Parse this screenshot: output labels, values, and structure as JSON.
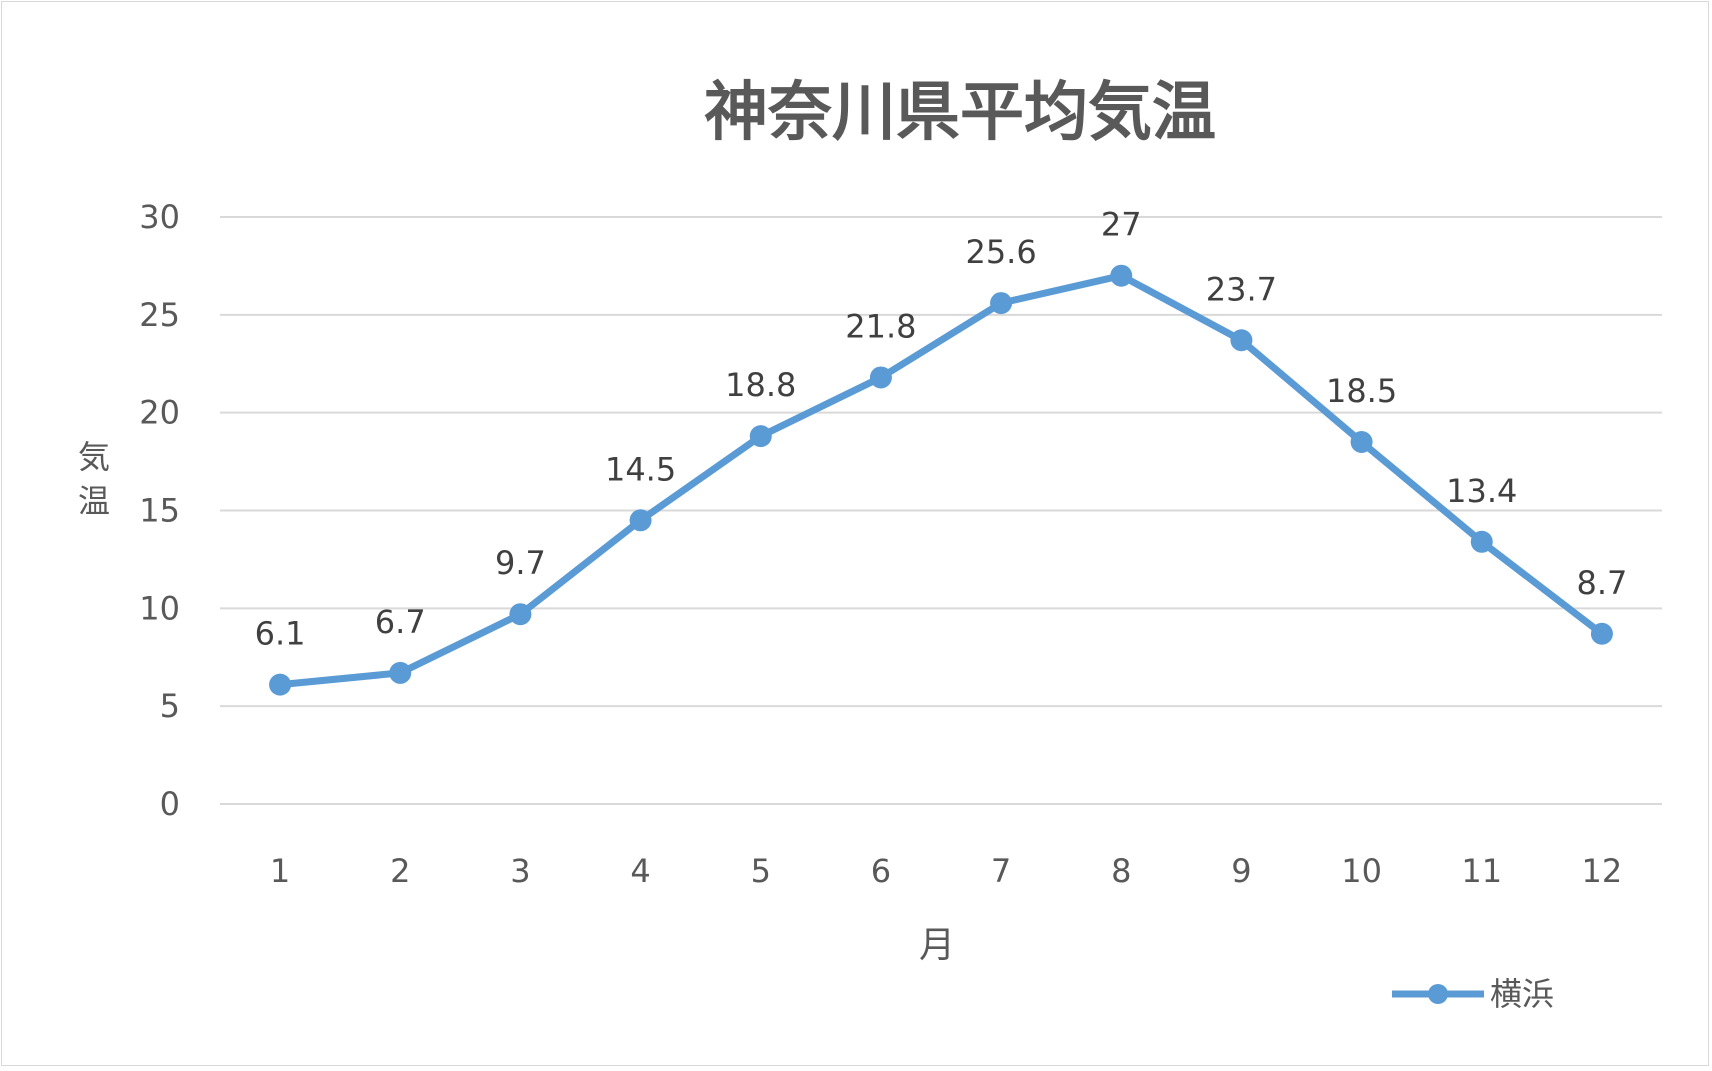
{
  "chart_data": {
    "type": "line",
    "title": "神奈川県平均気温",
    "xlabel": "月",
    "ylabel": "気温",
    "categories": [
      "1",
      "2",
      "3",
      "4",
      "5",
      "6",
      "7",
      "8",
      "9",
      "10",
      "11",
      "12"
    ],
    "series": [
      {
        "name": "横浜",
        "values": [
          6.1,
          6.7,
          9.7,
          14.5,
          18.8,
          21.8,
          25.6,
          27,
          23.7,
          18.5,
          13.4,
          8.7
        ],
        "color": "#5b9bd5"
      }
    ],
    "ylim": [
      0,
      30
    ],
    "yticks": [
      0,
      5,
      10,
      15,
      20,
      25,
      30
    ],
    "grid": true,
    "legend_position": "bottom-right"
  }
}
